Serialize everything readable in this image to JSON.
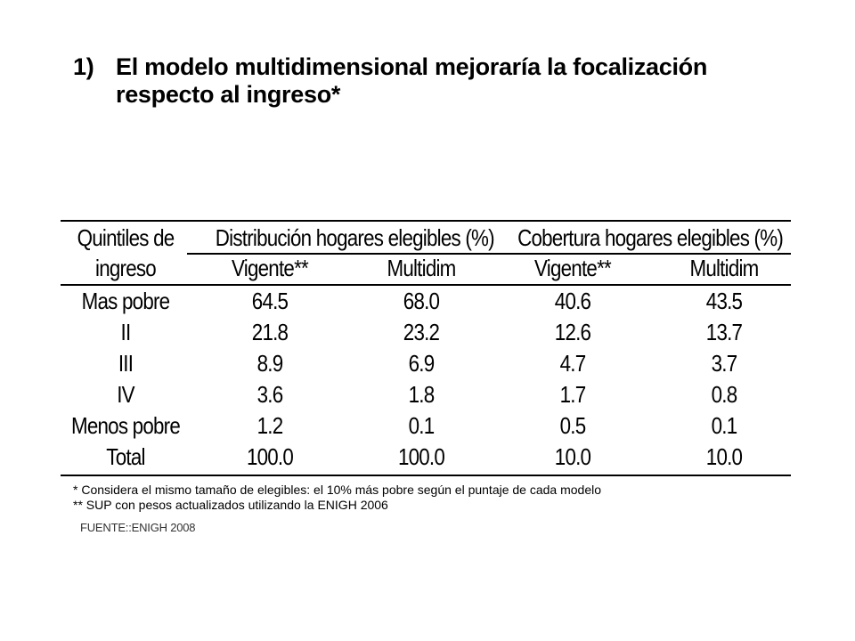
{
  "heading": {
    "number": "1)",
    "text_line1": "El modelo multidimensional mejoraría la focalización",
    "text_line2": "respecto al ingreso*"
  },
  "table": {
    "header": {
      "row_label_line1": "Quintiles de",
      "row_label_line2": "ingreso",
      "group1": "Distribución hogares elegibles (%)",
      "group2": "Cobertura hogares elegibles (%)",
      "sub": [
        "Vigente**",
        "Multidim",
        "Vigente**",
        "Multidim"
      ]
    },
    "rows": [
      {
        "label": "Mas pobre",
        "values": [
          "64.5",
          "68.0",
          "40.6",
          "43.5"
        ]
      },
      {
        "label": "II",
        "values": [
          "21.8",
          "23.2",
          "12.6",
          "13.7"
        ]
      },
      {
        "label": "III",
        "values": [
          "8.9",
          "6.9",
          "4.7",
          "3.7"
        ]
      },
      {
        "label": "IV",
        "values": [
          "3.6",
          "1.8",
          "1.7",
          "0.8"
        ]
      },
      {
        "label": "Menos pobre",
        "values": [
          "1.2",
          "0.1",
          "0.5",
          "0.1"
        ]
      },
      {
        "label": "Total",
        "values": [
          "100.0",
          "100.0",
          "10.0",
          "10.0"
        ]
      }
    ]
  },
  "notes": {
    "note1": "* Considera el mismo tamaño de elegibles: el 10% más pobre según el puntaje de cada modelo",
    "note2": "** SUP con pesos actualizados utilizando la ENIGH 2006",
    "source": "FUENTE::ENIGH 2008"
  }
}
